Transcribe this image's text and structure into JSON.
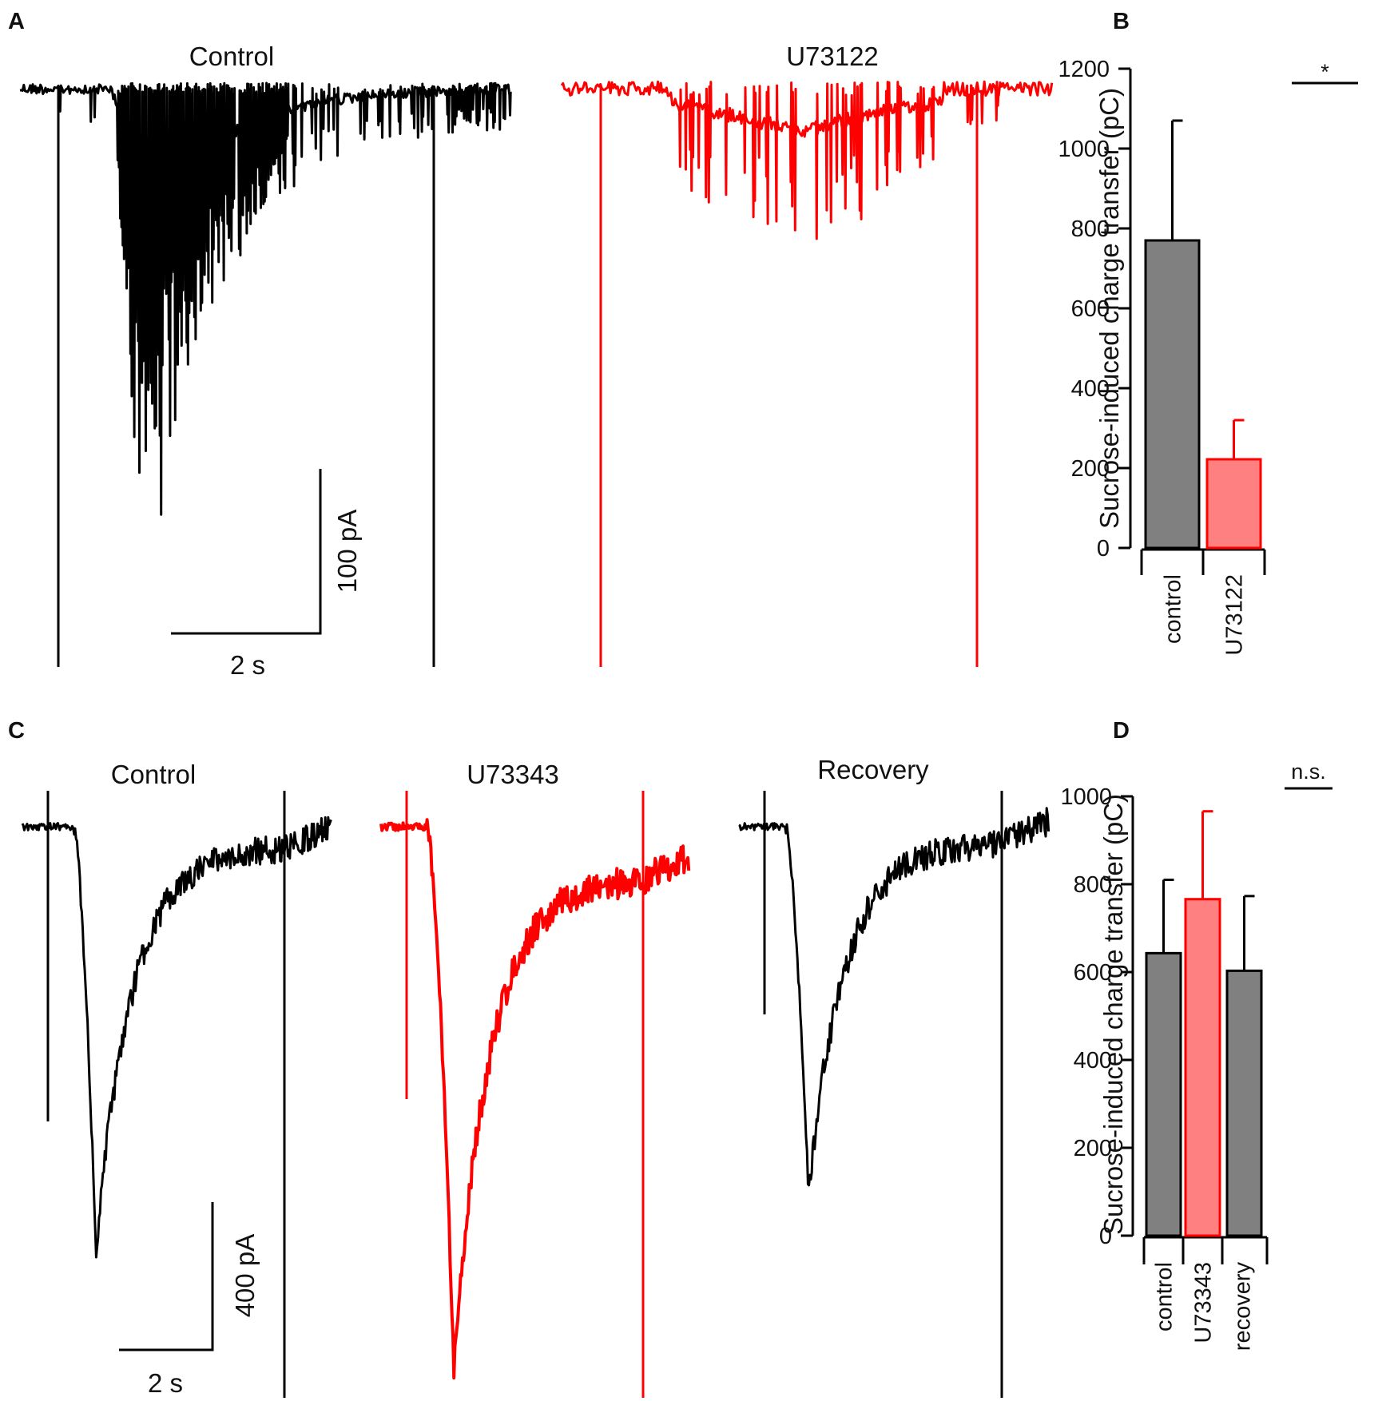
{
  "figure": {
    "panel_letters": [
      "A",
      "B",
      "C",
      "D"
    ]
  },
  "panel_a": {
    "traces": [
      {
        "title": "Control",
        "color": "#000000",
        "style": "spiky"
      },
      {
        "title": "U73122",
        "color": "#ff0000",
        "style": "sparse"
      }
    ],
    "scalebar": {
      "time_label": "2 s",
      "current_label": "100 pA"
    }
  },
  "panel_c": {
    "traces": [
      {
        "title": "Control",
        "color": "#000000"
      },
      {
        "title": "U73343",
        "color": "#ff0000"
      },
      {
        "title": "Recovery",
        "color": "#000000"
      }
    ],
    "scalebar": {
      "time_label": "2 s",
      "current_label": "400 pA"
    }
  },
  "chart_data": [
    {
      "panel": "B",
      "type": "bar",
      "categories": [
        "control",
        "U73122"
      ],
      "values": [
        770,
        222
      ],
      "errors": [
        300,
        98
      ],
      "colors": [
        "#808080",
        "#ff8080"
      ],
      "edge_colors": [
        "#000000",
        "#ff0000"
      ],
      "ylabel": "Sucrose-induced charge transfer (pC)",
      "ylim": [
        0,
        1200
      ],
      "yticks": [
        0,
        200,
        400,
        600,
        800,
        1000,
        1200
      ],
      "significance": {
        "label": "*",
        "between": [
          0,
          1
        ]
      },
      "grid": false
    },
    {
      "panel": "D",
      "type": "bar",
      "categories": [
        "control",
        "U73343",
        "recovery"
      ],
      "values": [
        643,
        766,
        603
      ],
      "errors": [
        167,
        200,
        170
      ],
      "colors": [
        "#808080",
        "#ff8080",
        "#808080"
      ],
      "edge_colors": [
        "#000000",
        "#ff0000",
        "#000000"
      ],
      "ylabel": "Sucrose-induced charge transfer (pC)",
      "ylim": [
        0,
        1000
      ],
      "yticks": [
        0,
        200,
        400,
        600,
        800,
        1000
      ],
      "significance": {
        "label": "n.s.",
        "between": [
          0,
          1
        ]
      },
      "grid": false
    }
  ]
}
